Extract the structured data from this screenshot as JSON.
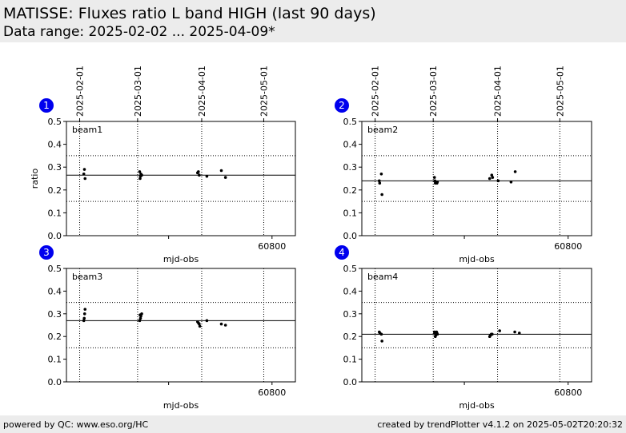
{
  "header": {
    "title": "MATISSE: Fluxes ratio L band HIGH (last 90 days)",
    "subtitle": "Data range: 2025-02-02 ... 2025-04-09*"
  },
  "footer": {
    "left": "powered by QC: www.eso.org/HC",
    "right": "created by trendPlotter v4.1.2 on 2025-05-02T20:20:32"
  },
  "colors": {
    "marker": "#0000ee",
    "points": "#000000",
    "header_bg": "#ececec"
  },
  "chart_data": [
    {
      "type": "scatter",
      "panel": 1,
      "label": "beam1",
      "xlabel": "mjd-obs",
      "ylabel": "ratio",
      "xlim": [
        60700.6,
        60811.3
      ],
      "ylim": [
        0,
        0.5
      ],
      "x_ticks": [
        60800
      ],
      "y_ticks": [
        0.0,
        0.1,
        0.2,
        0.3,
        0.4,
        0.5
      ],
      "date_ticks": [
        {
          "label": "2025-02-01",
          "mjd": 60707
        },
        {
          "label": "2025-03-01",
          "mjd": 60735
        },
        {
          "label": "2025-04-01",
          "mjd": 60766
        },
        {
          "label": "2025-05-01",
          "mjd": 60796
        }
      ],
      "reference": {
        "mean": 0.265,
        "upper": 0.35,
        "lower": 0.15
      },
      "points": {
        "x": [
          60709,
          60709.3,
          60709.6,
          60736,
          60736.2,
          60736.4,
          60736.6,
          60737,
          60764,
          60764.4,
          60764.8,
          60768.5,
          60775.5,
          60777.5
        ],
        "y": [
          0.27,
          0.29,
          0.25,
          0.28,
          0.25,
          0.26,
          0.27,
          0.265,
          0.275,
          0.28,
          0.265,
          0.26,
          0.285,
          0.255
        ]
      }
    },
    {
      "type": "scatter",
      "panel": 2,
      "label": "beam2",
      "xlabel": "mjd-obs",
      "ylabel": "",
      "xlim": [
        60700.6,
        60811.3
      ],
      "ylim": [
        0,
        0.5
      ],
      "x_ticks": [
        60800
      ],
      "y_ticks": [
        0.0,
        0.1,
        0.2,
        0.3,
        0.4,
        0.5
      ],
      "date_ticks": [
        {
          "label": "2025-02-01",
          "mjd": 60707
        },
        {
          "label": "2025-03-01",
          "mjd": 60735
        },
        {
          "label": "2025-04-01",
          "mjd": 60766
        },
        {
          "label": "2025-05-01",
          "mjd": 60796
        }
      ],
      "reference": {
        "mean": 0.24,
        "upper": 0.35,
        "lower": 0.15
      },
      "points": {
        "x": [
          60709,
          60709.2,
          60710,
          60710.3,
          60735.6,
          60735.8,
          60736,
          60736.2,
          60736.4,
          60736.6,
          60736.8,
          60737,
          60762.2,
          60763.2,
          60763.6,
          60766.3,
          60772.5,
          60774.5
        ],
        "y": [
          0.24,
          0.23,
          0.27,
          0.18,
          0.255,
          0.24,
          0.23,
          0.23,
          0.235,
          0.23,
          0.23,
          0.235,
          0.25,
          0.265,
          0.255,
          0.24,
          0.235,
          0.28
        ]
      }
    },
    {
      "type": "scatter",
      "panel": 3,
      "label": "beam3",
      "xlabel": "mjd-obs",
      "ylabel": "",
      "xlim": [
        60700.6,
        60811.3
      ],
      "ylim": [
        0,
        0.5
      ],
      "x_ticks": [
        60800
      ],
      "y_ticks": [
        0.0,
        0.1,
        0.2,
        0.3,
        0.4,
        0.5
      ],
      "reference": {
        "mean": 0.27,
        "upper": 0.35,
        "lower": 0.15
      },
      "points": {
        "x": [
          60709,
          60709.2,
          60709.4,
          60709.6,
          60736,
          60736.2,
          60736.4,
          60736.6,
          60737,
          60764,
          60764.4,
          60764.8,
          60765.1,
          60768.5,
          60775.5,
          60777.5
        ],
        "y": [
          0.27,
          0.28,
          0.3,
          0.32,
          0.27,
          0.295,
          0.28,
          0.29,
          0.3,
          0.265,
          0.26,
          0.255,
          0.245,
          0.27,
          0.255,
          0.25
        ]
      }
    },
    {
      "type": "scatter",
      "panel": 4,
      "label": "beam4",
      "xlabel": "mjd-obs",
      "ylabel": "",
      "xlim": [
        60700.6,
        60811.3
      ],
      "ylim": [
        0,
        0.5
      ],
      "x_ticks": [
        60800
      ],
      "y_ticks": [
        0.0,
        0.1,
        0.2,
        0.3,
        0.4,
        0.5
      ],
      "reference": {
        "mean": 0.21,
        "upper": 0.35,
        "lower": 0.15
      },
      "points": {
        "x": [
          60709,
          60709.3,
          60710,
          60710.3,
          60735.6,
          60735.8,
          60736,
          60736.2,
          60736.4,
          60736.6,
          60736.8,
          60737,
          60762.2,
          60762.6,
          60763,
          60763.4,
          60767,
          60774.3,
          60776.5
        ],
        "y": [
          0.22,
          0.215,
          0.21,
          0.18,
          0.22,
          0.215,
          0.2,
          0.205,
          0.21,
          0.22,
          0.215,
          0.21,
          0.2,
          0.205,
          0.21,
          0.21,
          0.225,
          0.22,
          0.215
        ]
      }
    }
  ]
}
